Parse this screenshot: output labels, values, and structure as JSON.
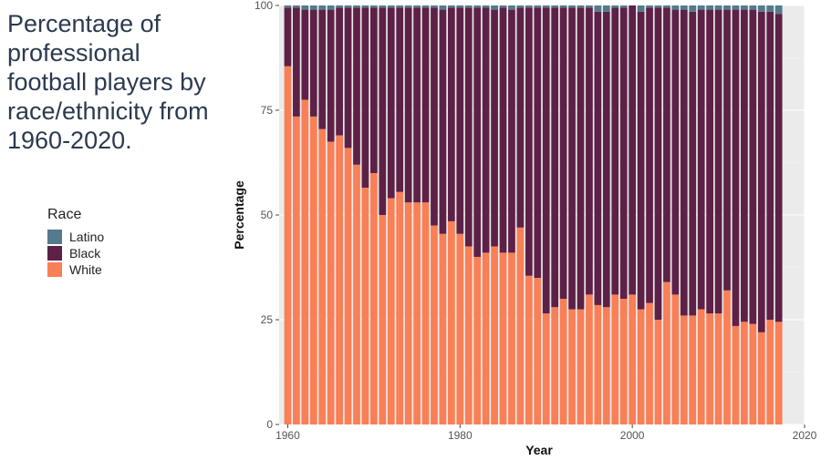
{
  "chart_data": {
    "type": "bar",
    "stacked": true,
    "title": "Percentage of professional football players by race/ethnicity from 1960-2020.",
    "xlabel": "Year",
    "ylabel": "Percentage",
    "xlim": [
      1959,
      2020
    ],
    "ylim": [
      0,
      100
    ],
    "x_ticks": [
      "1960",
      "1980",
      "2000",
      "2020"
    ],
    "y_ticks": [
      "0",
      "25",
      "50",
      "75",
      "100"
    ],
    "grid": true,
    "legend": {
      "title": "Race",
      "position": "left"
    },
    "x": [
      1960,
      1961,
      1962,
      1963,
      1964,
      1965,
      1966,
      1967,
      1968,
      1969,
      1970,
      1971,
      1972,
      1973,
      1974,
      1975,
      1976,
      1977,
      1978,
      1979,
      1980,
      1981,
      1982,
      1983,
      1984,
      1985,
      1986,
      1987,
      1988,
      1989,
      1990,
      1991,
      1992,
      1993,
      1994,
      1995,
      1996,
      1997,
      1998,
      1999,
      2000,
      2001,
      2002,
      2003,
      2004,
      2005,
      2006,
      2007,
      2008,
      2009,
      2010,
      2011,
      2012,
      2013,
      2014,
      2015,
      2016,
      2017
    ],
    "series": [
      {
        "name": "White",
        "color": "#f97f56",
        "values": [
          85.5,
          73.5,
          77.5,
          73.5,
          70.5,
          67.5,
          69,
          66,
          62,
          56.5,
          60,
          50,
          54,
          55.5,
          53,
          53,
          53,
          47.5,
          45.5,
          48.5,
          45.5,
          42.5,
          40,
          41,
          42.5,
          41,
          41,
          47,
          35.5,
          35,
          26.5,
          28,
          30,
          27.5,
          27.5,
          31,
          28.5,
          28,
          31,
          30,
          31,
          27.5,
          29,
          25,
          34,
          31,
          26,
          26,
          27.5,
          26.5,
          26.5,
          32,
          23.5,
          24.5,
          24,
          22,
          25,
          24.5
        ]
      },
      {
        "name": "Black",
        "color": "#5d2147",
        "values": [
          14,
          26,
          21.5,
          25.5,
          28.5,
          31.5,
          30.5,
          33.5,
          37.5,
          43,
          39.5,
          49.5,
          45.5,
          44,
          46.5,
          46.5,
          46.5,
          52,
          53.5,
          51,
          54,
          57,
          59.5,
          58.5,
          56.5,
          58.5,
          58,
          52.5,
          64,
          64.5,
          73,
          71.5,
          69.5,
          72,
          72,
          68.5,
          70,
          70.5,
          68.5,
          69.5,
          69,
          71,
          70.5,
          74.5,
          65.5,
          68,
          73,
          72.5,
          71.5,
          72.5,
          72.5,
          67,
          75.5,
          74.5,
          75,
          76.5,
          73.5,
          73.5
        ]
      },
      {
        "name": "Latino",
        "color": "#547a8c",
        "values": [
          0.5,
          0.5,
          1,
          1,
          1,
          1,
          0.5,
          0.5,
          0.5,
          0.5,
          0.5,
          0.5,
          0.5,
          0.5,
          0.5,
          0.5,
          0.5,
          0.5,
          1,
          0.5,
          0.5,
          0.5,
          0.5,
          0.5,
          1,
          0.5,
          1,
          0.5,
          0.5,
          0.5,
          0.5,
          0.5,
          0.5,
          0.5,
          0.5,
          0.5,
          1.5,
          1.5,
          0.5,
          0.5,
          0,
          1.5,
          0.5,
          0.5,
          0.5,
          1,
          1,
          1.5,
          1,
          1,
          1,
          1,
          1,
          1,
          1,
          1.5,
          1.5,
          2
        ]
      }
    ]
  }
}
